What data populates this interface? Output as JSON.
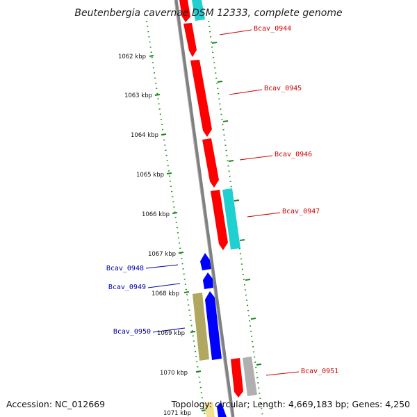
{
  "title": "Beutenbergia cavernae DSM 12333, complete genome",
  "footer": {
    "accession": "Accession: NC_012669",
    "stats": "Topology: circular; Length: 4,669,183 bp; Genes: 4,250"
  },
  "colors": {
    "forward_cds": "#ff0000",
    "reverse_cds": "#0000ff",
    "cyan_feature": "#20d0d0",
    "olive_feature": "#b0a860",
    "gray_feature": "#b0b0b0",
    "yellow_feature": "#f0e090",
    "backbone": "#808080",
    "tick": "#1a8a1a",
    "forward_label": "#cc0000",
    "reverse_label": "#0000aa"
  },
  "ticks": [
    {
      "label": "1062 kbp"
    },
    {
      "label": "1063 kbp"
    },
    {
      "label": "1064 kbp"
    },
    {
      "label": "1065 kbp"
    },
    {
      "label": "1066 kbp"
    },
    {
      "label": "1067 kbp"
    },
    {
      "label": "1068 kbp"
    },
    {
      "label": "1069 kbp"
    },
    {
      "label": "1070 kbp"
    },
    {
      "label": "1071 kbp"
    }
  ],
  "gene_labels": {
    "forward": [
      "Bcav_0944",
      "Bcav_0945",
      "Bcav_0946",
      "Bcav_0947",
      "Bcav_0951"
    ],
    "reverse": [
      "Bcav_0948",
      "Bcav_0949",
      "Bcav_0950"
    ]
  }
}
